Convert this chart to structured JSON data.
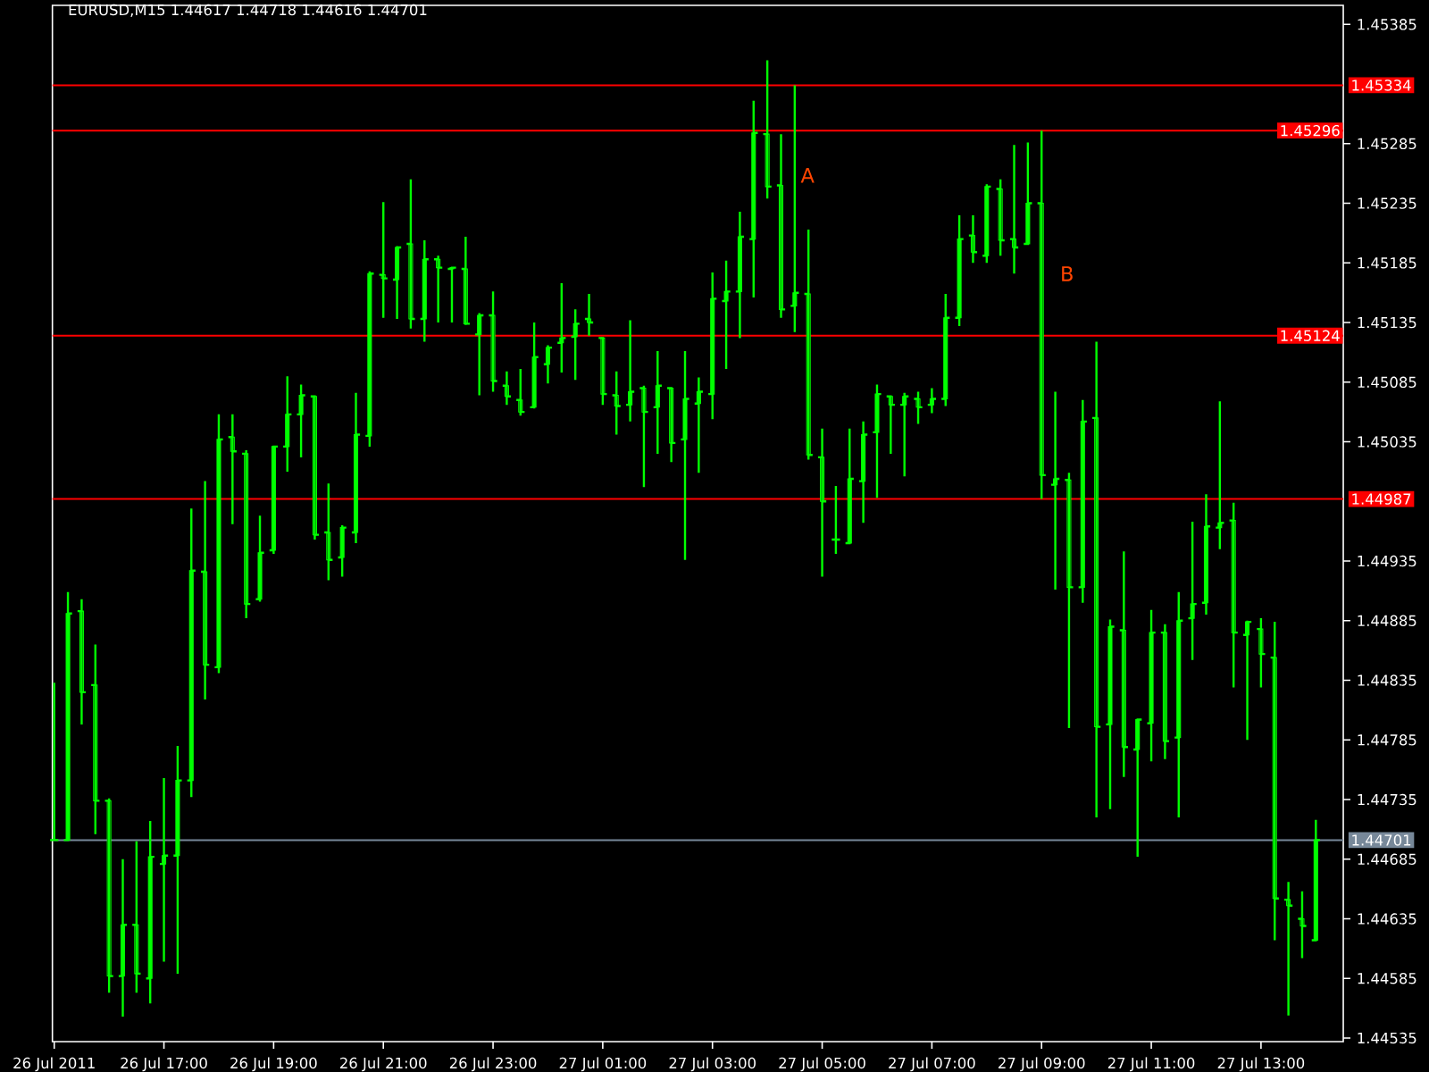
{
  "chart_data": {
    "type": "candlestick",
    "title": "EURUSD,M15 1.44617 1.44718 1.44616 1.44701",
    "color": "#00ff00",
    "x": [
      "2011-07-26T15:00",
      "2011-07-26T15:15",
      "2011-07-26T15:30",
      "2011-07-26T15:45",
      "2011-07-26T16:00",
      "2011-07-26T16:15",
      "2011-07-26T16:30",
      "2011-07-26T16:45",
      "2011-07-26T17:00",
      "2011-07-26T17:15",
      "2011-07-26T17:30",
      "2011-07-26T17:45",
      "2011-07-26T18:00",
      "2011-07-26T18:15",
      "2011-07-26T18:30",
      "2011-07-26T18:45",
      "2011-07-26T19:00",
      "2011-07-26T19:15",
      "2011-07-26T19:30",
      "2011-07-26T19:45",
      "2011-07-26T20:00",
      "2011-07-26T20:15",
      "2011-07-26T20:30",
      "2011-07-26T20:45",
      "2011-07-26T21:00",
      "2011-07-26T21:15",
      "2011-07-26T21:30",
      "2011-07-26T21:45",
      "2011-07-26T22:00",
      "2011-07-26T22:15",
      "2011-07-26T22:30",
      "2011-07-26T22:45",
      "2011-07-26T23:00",
      "2011-07-26T23:15",
      "2011-07-26T23:30",
      "2011-07-26T23:45",
      "2011-07-27T00:00",
      "2011-07-27T00:15",
      "2011-07-27T00:30",
      "2011-07-27T00:45",
      "2011-07-27T01:00",
      "2011-07-27T01:15",
      "2011-07-27T01:30",
      "2011-07-27T01:45",
      "2011-07-27T02:00",
      "2011-07-27T02:15",
      "2011-07-27T02:30",
      "2011-07-27T02:45",
      "2011-07-27T03:00",
      "2011-07-27T03:15",
      "2011-07-27T03:30",
      "2011-07-27T03:45",
      "2011-07-27T04:00",
      "2011-07-27T04:15",
      "2011-07-27T04:30",
      "2011-07-27T04:45",
      "2011-07-27T05:00",
      "2011-07-27T05:15",
      "2011-07-27T05:30",
      "2011-07-27T05:45",
      "2011-07-27T06:00",
      "2011-07-27T06:15",
      "2011-07-27T06:30",
      "2011-07-27T06:45",
      "2011-07-27T07:00",
      "2011-07-27T07:15",
      "2011-07-27T07:30",
      "2011-07-27T07:45",
      "2011-07-27T08:00",
      "2011-07-27T08:15",
      "2011-07-27T08:30",
      "2011-07-27T08:45",
      "2011-07-27T09:00",
      "2011-07-27T09:15",
      "2011-07-27T09:30",
      "2011-07-27T09:45",
      "2011-07-27T10:00",
      "2011-07-27T10:15",
      "2011-07-27T10:30",
      "2011-07-27T10:45",
      "2011-07-27T11:00",
      "2011-07-27T11:15",
      "2011-07-27T11:30",
      "2011-07-27T11:45",
      "2011-07-27T12:00",
      "2011-07-27T12:15",
      "2011-07-27T12:30",
      "2011-07-27T12:45",
      "2011-07-27T13:00",
      "2011-07-27T13:15",
      "2011-07-27T13:30",
      "2011-07-27T13:45",
      "2011-07-27T14:00"
    ],
    "ohlc": [
      [
        1.44701,
        1.44833,
        1.44701,
        1.44701
      ],
      [
        1.44701,
        1.44909,
        1.44701,
        1.44891
      ],
      [
        1.44893,
        1.44903,
        1.44798,
        1.44825
      ],
      [
        1.44831,
        1.44865,
        1.44706,
        1.44734
      ],
      [
        1.44734,
        1.44736,
        1.44573,
        1.44587
      ],
      [
        1.44587,
        1.44685,
        1.44553,
        1.4463
      ],
      [
        1.4463,
        1.447,
        1.44573,
        1.44589
      ],
      [
        1.44585,
        1.44717,
        1.44564,
        1.44687
      ],
      [
        1.44681,
        1.44753,
        1.44599,
        1.44688
      ],
      [
        1.44688,
        1.4478,
        1.44589,
        1.44751
      ],
      [
        1.44751,
        1.44979,
        1.44737,
        1.44927
      ],
      [
        1.44926,
        1.45002,
        1.44819,
        1.44848
      ],
      [
        1.44846,
        1.45058,
        1.44841,
        1.45037
      ],
      [
        1.45039,
        1.45058,
        1.44966,
        1.45027
      ],
      [
        1.45025,
        1.45028,
        1.44887,
        1.44899
      ],
      [
        1.44903,
        1.44973,
        1.44901,
        1.44942
      ],
      [
        1.44944,
        1.45031,
        1.44941,
        1.45031
      ],
      [
        1.45031,
        1.4509,
        1.4501,
        1.45058
      ],
      [
        1.45058,
        1.45083,
        1.45022,
        1.45074
      ],
      [
        1.45073,
        1.45074,
        1.44953,
        1.44957
      ],
      [
        1.44959,
        1.45,
        1.44919,
        1.44936
      ],
      [
        1.44938,
        1.44965,
        1.44922,
        1.44963
      ],
      [
        1.44959,
        1.45076,
        1.4495,
        1.45041
      ],
      [
        1.4504,
        1.45178,
        1.45031,
        1.45176
      ],
      [
        1.45175,
        1.45236,
        1.45139,
        1.45172
      ],
      [
        1.45171,
        1.45199,
        1.45138,
        1.45198
      ],
      [
        1.45201,
        1.45255,
        1.4513,
        1.45138
      ],
      [
        1.45138,
        1.45204,
        1.45119,
        1.45188
      ],
      [
        1.45188,
        1.45191,
        1.45135,
        1.45181
      ],
      [
        1.4518,
        1.45181,
        1.45135,
        1.45181
      ],
      [
        1.4518,
        1.45207,
        1.45133,
        1.45134
      ],
      [
        1.45125,
        1.45143,
        1.45074,
        1.45141
      ],
      [
        1.45141,
        1.45161,
        1.45077,
        1.45086
      ],
      [
        1.45082,
        1.45094,
        1.45066,
        1.45073
      ],
      [
        1.4507,
        1.45096,
        1.45057,
        1.4506
      ],
      [
        1.45064,
        1.45135,
        1.45063,
        1.45106
      ],
      [
        1.451,
        1.45116,
        1.45084,
        1.45114
      ],
      [
        1.45118,
        1.45168,
        1.45093,
        1.45122
      ],
      [
        1.45123,
        1.45146,
        1.45087,
        1.45134
      ],
      [
        1.45138,
        1.45159,
        1.45124,
        1.45135
      ],
      [
        1.45122,
        1.45122,
        1.45066,
        1.45075
      ],
      [
        1.45074,
        1.45094,
        1.45041,
        1.45065
      ],
      [
        1.45066,
        1.45137,
        1.45052,
        1.45077
      ],
      [
        1.4508,
        1.45082,
        1.44997,
        1.4506
      ],
      [
        1.45064,
        1.45111,
        1.45025,
        1.45082
      ],
      [
        1.4508,
        1.45081,
        1.45018,
        1.45034
      ],
      [
        1.45037,
        1.45111,
        1.44936,
        1.45071
      ],
      [
        1.45067,
        1.45089,
        1.45009,
        1.45077
      ],
      [
        1.45075,
        1.45177,
        1.45054,
        1.45155
      ],
      [
        1.45153,
        1.45187,
        1.45096,
        1.45161
      ],
      [
        1.45161,
        1.45228,
        1.45122,
        1.45207
      ],
      [
        1.45205,
        1.45321,
        1.45156,
        1.45294
      ],
      [
        1.45293,
        1.45355,
        1.45239,
        1.45249
      ],
      [
        1.4525,
        1.45293,
        1.45139,
        1.45146
      ],
      [
        1.45149,
        1.45334,
        1.45127,
        1.4516
      ],
      [
        1.45159,
        1.45213,
        1.4502,
        1.45024
      ],
      [
        1.45022,
        1.45046,
        1.44922,
        1.44985
      ],
      [
        1.44953,
        1.44998,
        1.44941,
        1.44953
      ],
      [
        1.4495,
        1.45046,
        1.4495,
        1.45004
      ],
      [
        1.45002,
        1.45052,
        1.44967,
        1.45041
      ],
      [
        1.45043,
        1.45083,
        1.44988,
        1.45075
      ],
      [
        1.45073,
        1.45073,
        1.45025,
        1.45066
      ],
      [
        1.45066,
        1.45076,
        1.45006,
        1.45073
      ],
      [
        1.45071,
        1.45077,
        1.4505,
        1.45064
      ],
      [
        1.45066,
        1.4508,
        1.45059,
        1.45071
      ],
      [
        1.45071,
        1.45159,
        1.45065,
        1.45139
      ],
      [
        1.45139,
        1.45225,
        1.45132,
        1.45205
      ],
      [
        1.45208,
        1.45225,
        1.45185,
        1.45194
      ],
      [
        1.45191,
        1.45251,
        1.45185,
        1.45249
      ],
      [
        1.45247,
        1.45255,
        1.45191,
        1.45204
      ],
      [
        1.45205,
        1.45284,
        1.45176,
        1.45198
      ],
      [
        1.45201,
        1.45286,
        1.452,
        1.45235
      ],
      [
        1.45235,
        1.45296,
        1.44987,
        1.45007
      ],
      [
        1.44999,
        1.45077,
        1.44911,
        1.45004
      ],
      [
        1.45003,
        1.45009,
        1.44795,
        1.44913
      ],
      [
        1.44913,
        1.4507,
        1.449,
        1.45052
      ],
      [
        1.45055,
        1.45119,
        1.4472,
        1.44796
      ],
      [
        1.44798,
        1.44886,
        1.44727,
        1.4488
      ],
      [
        1.44877,
        1.44943,
        1.44754,
        1.44779
      ],
      [
        1.44777,
        1.44802,
        1.44687,
        1.44802
      ],
      [
        1.44799,
        1.44894,
        1.44767,
        1.44875
      ],
      [
        1.44875,
        1.44882,
        1.44769,
        1.44784
      ],
      [
        1.44787,
        1.44909,
        1.4472,
        1.44885
      ],
      [
        1.44887,
        1.44968,
        1.44852,
        1.44899
      ],
      [
        1.449,
        1.44991,
        1.4489,
        1.44964
      ],
      [
        1.44963,
        1.45069,
        1.44945,
        1.44967
      ],
      [
        1.44969,
        1.44984,
        1.44829,
        1.44875
      ],
      [
        1.44873,
        1.44885,
        1.44785,
        1.44884
      ],
      [
        1.44878,
        1.44887,
        1.44829,
        1.44857
      ],
      [
        1.44854,
        1.44884,
        1.44617,
        1.44652
      ],
      [
        1.44651,
        1.44666,
        1.44554,
        1.44646
      ],
      [
        1.44635,
        1.44658,
        1.44602,
        1.44629
      ],
      [
        1.44617,
        1.44718,
        1.44616,
        1.44701
      ]
    ],
    "xlim": [
      "2011-07-26T14:58",
      "2011-07-27T14:30"
    ],
    "ylim": [
      1.44532,
      1.45401
    ],
    "xticks": [
      {
        "value": "2011-07-26T15:00",
        "label": "26 Jul 2011"
      },
      {
        "value": "2011-07-26T17:00",
        "label": "26 Jul 17:00"
      },
      {
        "value": "2011-07-26T19:00",
        "label": "26 Jul 19:00"
      },
      {
        "value": "2011-07-26T21:00",
        "label": "26 Jul 21:00"
      },
      {
        "value": "2011-07-26T23:00",
        "label": "26 Jul 23:00"
      },
      {
        "value": "2011-07-27T01:00",
        "label": "27 Jul 01:00"
      },
      {
        "value": "2011-07-27T03:00",
        "label": "27 Jul 03:00"
      },
      {
        "value": "2011-07-27T05:00",
        "label": "27 Jul 05:00"
      },
      {
        "value": "2011-07-27T07:00",
        "label": "27 Jul 07:00"
      },
      {
        "value": "2011-07-27T09:00",
        "label": "27 Jul 09:00"
      },
      {
        "value": "2011-07-27T11:00",
        "label": "27 Jul 11:00"
      },
      {
        "value": "2011-07-27T13:00",
        "label": "27 Jul 13:00"
      }
    ],
    "yticks": [
      1.44535,
      1.44585,
      1.44635,
      1.44685,
      1.44735,
      1.44785,
      1.44835,
      1.44885,
      1.44935,
      1.45035,
      1.45085,
      1.45135,
      1.45185,
      1.45235,
      1.45285,
      1.45385
    ],
    "ref_lines": [
      {
        "axis": "y",
        "value": 1.45334,
        "label": "1.45334",
        "color": "#ff0000"
      },
      {
        "axis": "y",
        "value": 1.45296,
        "label": "1.45296",
        "color": "#ff0000"
      },
      {
        "axis": "y",
        "value": 1.45124,
        "label": "1.45124",
        "color": "#ff0000"
      },
      {
        "axis": "y",
        "value": 1.44987,
        "label": "1.44987",
        "color": "#ff0000"
      },
      {
        "axis": "y",
        "value": 1.44701,
        "label": "1.44701",
        "color": "#778899"
      }
    ],
    "annotations": [
      "A",
      "B"
    ]
  }
}
